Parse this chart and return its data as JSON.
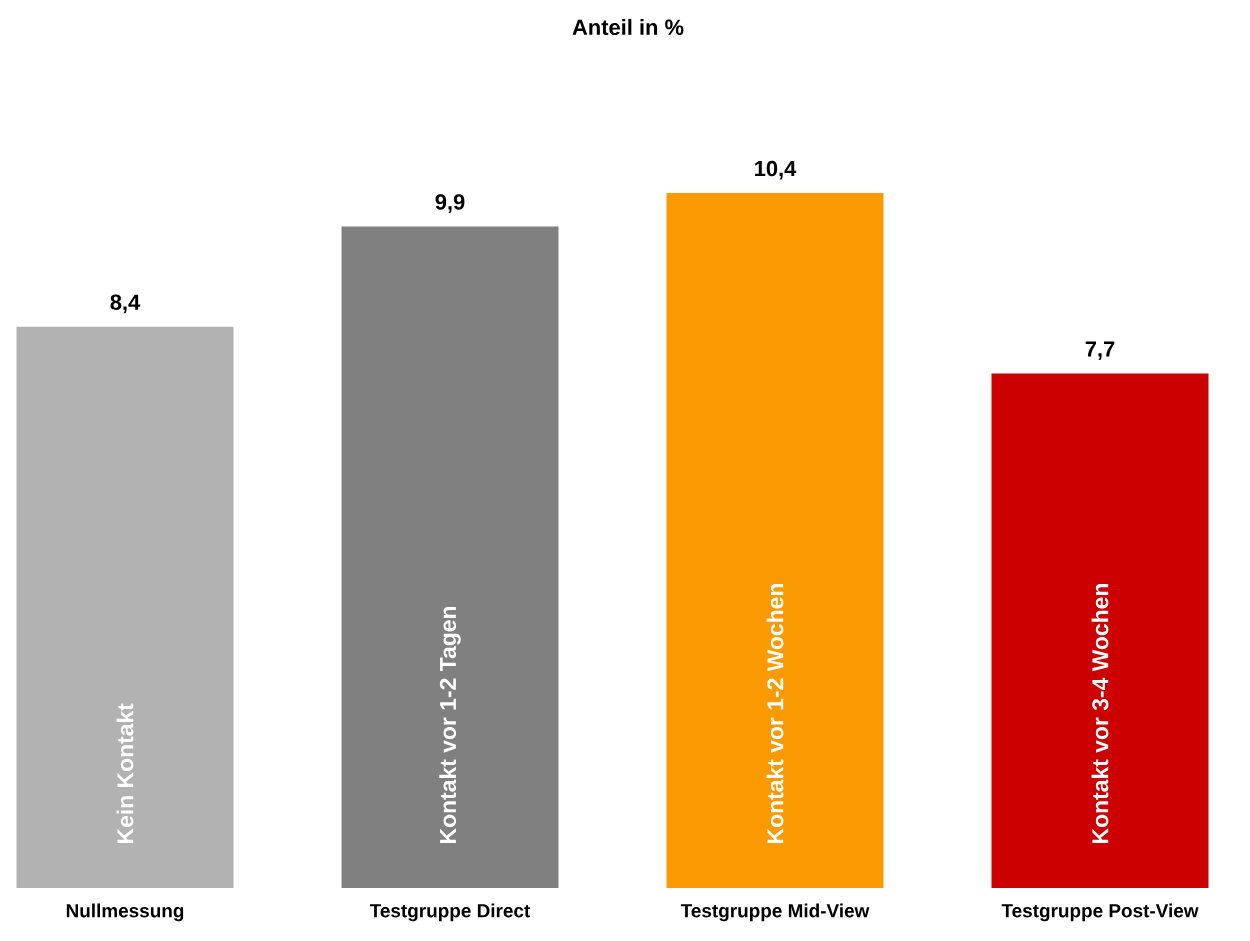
{
  "chart_data": {
    "type": "bar",
    "title": "Anteil in %",
    "categories": [
      "Nullmessung",
      "Testgruppe Direct",
      "Testgruppe Mid-View",
      "Testgruppe Post-View"
    ],
    "values": [
      8.4,
      9.9,
      10.4,
      7.7
    ],
    "value_labels": [
      "8,4",
      "9,9",
      "10,4",
      "7,7"
    ],
    "colors": [
      "#b2b2b2",
      "#808080",
      "#fb9900",
      "#cc0000"
    ],
    "annotations": [
      "Kein Kontakt",
      "Kontakt vor 1-2 Tagen",
      "Kontakt vor 1-2 Wochen",
      "Kontakt vor 3-4 Wochen"
    ],
    "grid": false
  }
}
